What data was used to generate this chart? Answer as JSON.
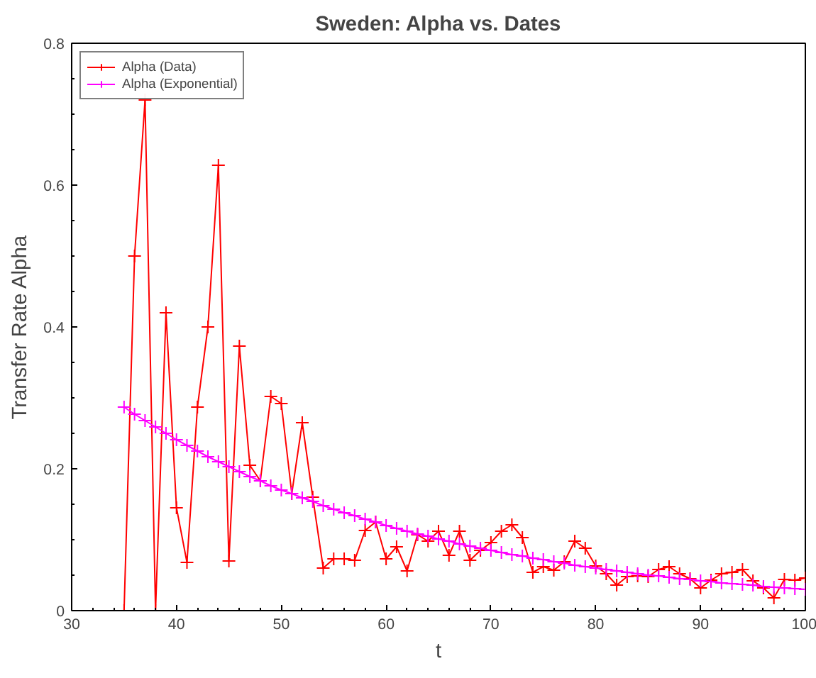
{
  "chart_data": {
    "type": "line",
    "title": "Sweden: Alpha vs. Dates",
    "xlabel": "t",
    "ylabel": "Transfer Rate Alpha",
    "x": [
      35,
      36,
      37,
      38,
      39,
      40,
      41,
      42,
      43,
      44,
      45,
      46,
      47,
      48,
      49,
      50,
      51,
      52,
      53,
      54,
      55,
      56,
      57,
      58,
      59,
      60,
      61,
      62,
      63,
      64,
      65,
      66,
      67,
      68,
      69,
      70,
      71,
      72,
      73,
      74,
      75,
      76,
      77,
      78,
      79,
      80,
      81,
      82,
      83,
      84,
      85,
      86,
      87,
      88,
      89,
      90,
      91,
      92,
      93,
      94,
      95,
      96,
      97,
      98,
      99,
      100
    ],
    "series": [
      {
        "name": "Alpha (Data)",
        "color": "#ff0000",
        "values": [
          0,
          0.5,
          0.72,
          0,
          0.42,
          0.145,
          0.068,
          0.287,
          0.4,
          0.628,
          0.07,
          0.373,
          0.205,
          0.183,
          0.302,
          0.292,
          0.165,
          0.265,
          0.16,
          0.06,
          0.073,
          0.073,
          0.071,
          0.113,
          0.125,
          0.073,
          0.09,
          0.056,
          0.107,
          0.098,
          0.112,
          0.078,
          0.112,
          0.071,
          0.085,
          0.096,
          0.112,
          0.121,
          0.103,
          0.054,
          0.062,
          0.057,
          0.069,
          0.098,
          0.088,
          0.063,
          0.052,
          0.036,
          0.048,
          0.049,
          0.048,
          0.058,
          0.062,
          0.052,
          0.045,
          0.032,
          0.043,
          0.052,
          0.054,
          0.058,
          0.042,
          0.032,
          0.018,
          0.044,
          0.043,
          0.046
        ]
      },
      {
        "name": "Alpha (Exponential)",
        "color": "#ff00ff",
        "values": [
          0.287,
          0.277,
          0.268,
          0.259,
          0.25,
          0.241,
          0.233,
          0.225,
          0.217,
          0.21,
          0.203,
          0.196,
          0.189,
          0.183,
          0.176,
          0.17,
          0.165,
          0.159,
          0.154,
          0.148,
          0.143,
          0.138,
          0.134,
          0.129,
          0.125,
          0.12,
          0.116,
          0.112,
          0.108,
          0.105,
          0.101,
          0.098,
          0.094,
          0.091,
          0.088,
          0.085,
          0.082,
          0.079,
          0.077,
          0.074,
          0.072,
          0.069,
          0.067,
          0.064,
          0.062,
          0.06,
          0.058,
          0.056,
          0.054,
          0.052,
          0.05,
          0.049,
          0.047,
          0.045,
          0.044,
          0.042,
          0.041,
          0.039,
          0.038,
          0.037,
          0.036,
          0.034,
          0.033,
          0.032,
          0.031,
          0.03
        ]
      }
    ],
    "xlim": [
      30,
      100
    ],
    "ylim": [
      0,
      0.8
    ],
    "xticks": [
      30,
      40,
      50,
      60,
      70,
      80,
      90,
      100
    ],
    "yticks": [
      0,
      {
        "value": 0.2,
        "label": "0.2"
      },
      {
        "value": 0.4,
        "label": "0.4"
      },
      {
        "value": 0.6,
        "label": "0.6"
      },
      {
        "value": 0.8,
        "label": "0.8"
      }
    ],
    "grid": false,
    "legend": "top left",
    "marker": "cross",
    "line_style": "solid"
  }
}
